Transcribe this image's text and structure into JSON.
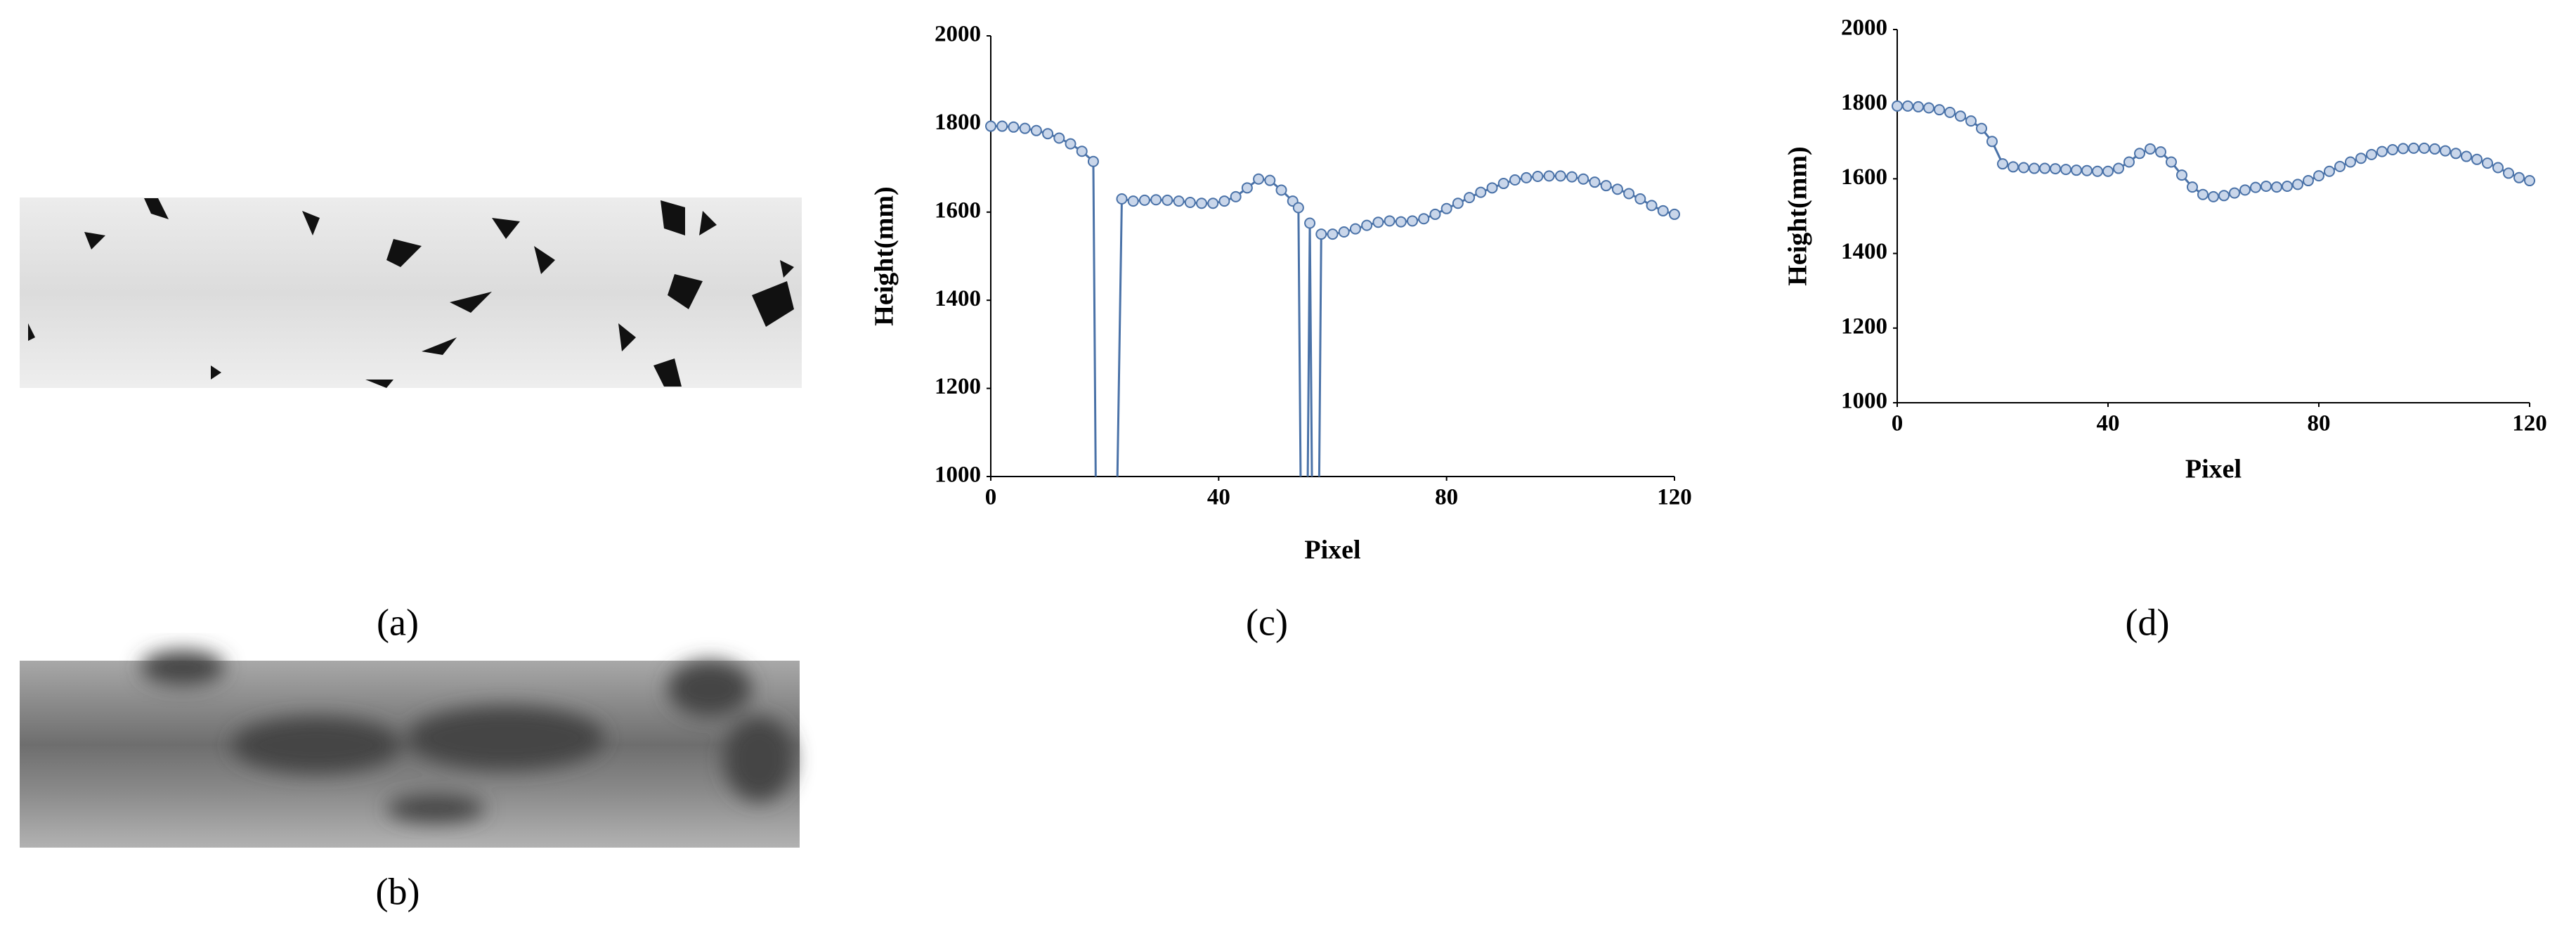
{
  "panels": {
    "a": "(a)",
    "b": "(b)"
  },
  "chart_data": [
    {
      "type": "line",
      "panel_label": "(c)",
      "x_label": "Pixel",
      "y_label": "Height(mm)",
      "x": [
        0,
        2,
        4,
        6,
        8,
        10,
        12,
        14,
        16,
        18,
        19,
        21,
        23,
        25,
        27,
        29,
        31,
        33,
        35,
        37,
        39,
        41,
        43,
        45,
        47,
        49,
        51,
        53,
        54,
        55,
        56,
        57,
        58,
        60,
        62,
        64,
        66,
        68,
        70,
        72,
        74,
        76,
        78,
        80,
        82,
        84,
        86,
        88,
        90,
        92,
        94,
        96,
        98,
        100,
        102,
        104,
        106,
        108,
        110,
        112,
        114,
        116,
        118,
        120
      ],
      "series": [
        {
          "color": "#4a72a8",
          "values": [
            1795,
            1795,
            1793,
            1790,
            1785,
            1778,
            1768,
            1755,
            1738,
            1715,
            0,
            0,
            1630,
            1625,
            1627,
            1628,
            1627,
            1625,
            1622,
            1620,
            1620,
            1625,
            1635,
            1655,
            1675,
            1672,
            1650,
            1625,
            1610,
            0,
            1575,
            0,
            1550,
            1550,
            1555,
            1562,
            1570,
            1577,
            1580,
            1578,
            1580,
            1585,
            1595,
            1608,
            1620,
            1633,
            1645,
            1655,
            1665,
            1673,
            1678,
            1681,
            1682,
            1682,
            1680,
            1675,
            1668,
            1660,
            1652,
            1642,
            1630,
            1615,
            1603,
            1595
          ]
        }
      ],
      "xlim": [
        0,
        120
      ],
      "ylim": [
        1000,
        2000
      ],
      "xticks": [
        0,
        40,
        80,
        120
      ],
      "yticks": [
        1000,
        1200,
        1400,
        1600,
        1800,
        2000
      ]
    },
    {
      "type": "line",
      "panel_label": "(d)",
      "x_label": "Pixel",
      "y_label": "Height(mm)",
      "x": [
        0,
        2,
        4,
        6,
        8,
        10,
        12,
        14,
        16,
        18,
        20,
        22,
        24,
        26,
        28,
        30,
        32,
        34,
        36,
        38,
        40,
        42,
        44,
        46,
        48,
        50,
        52,
        54,
        56,
        58,
        60,
        62,
        64,
        66,
        68,
        70,
        72,
        74,
        76,
        78,
        80,
        82,
        84,
        86,
        88,
        90,
        92,
        94,
        96,
        98,
        100,
        102,
        104,
        106,
        108,
        110,
        112,
        114,
        116,
        118,
        120
      ],
      "series": [
        {
          "color": "#4a72a8",
          "values": [
            1795,
            1795,
            1793,
            1790,
            1785,
            1778,
            1768,
            1755,
            1735,
            1700,
            1640,
            1632,
            1630,
            1628,
            1628,
            1627,
            1625,
            1623,
            1622,
            1620,
            1620,
            1628,
            1645,
            1668,
            1680,
            1672,
            1645,
            1610,
            1578,
            1558,
            1552,
            1555,
            1562,
            1570,
            1577,
            1580,
            1578,
            1580,
            1585,
            1595,
            1608,
            1620,
            1633,
            1645,
            1655,
            1665,
            1673,
            1678,
            1681,
            1682,
            1682,
            1680,
            1675,
            1668,
            1660,
            1652,
            1642,
            1630,
            1615,
            1603,
            1595
          ]
        }
      ],
      "xlim": [
        0,
        120
      ],
      "ylim": [
        1000,
        2000
      ],
      "xticks": [
        0,
        40,
        80,
        120
      ],
      "yticks": [
        1000,
        1200,
        1400,
        1600,
        1800,
        2000
      ]
    }
  ]
}
